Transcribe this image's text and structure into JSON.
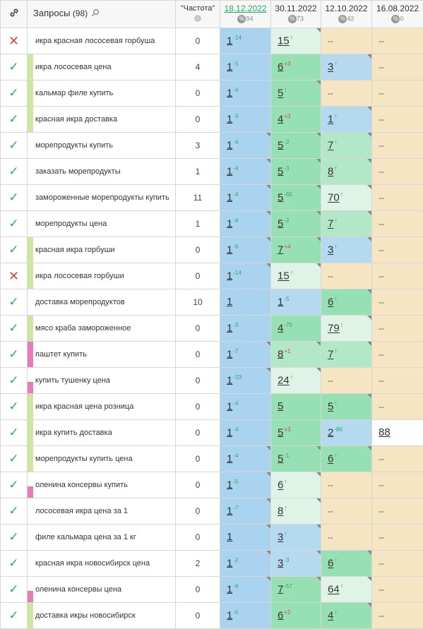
{
  "header": {
    "query_title": "Запросы",
    "query_count": "(98)",
    "frequency_title": "\"Частота\"",
    "dates": [
      {
        "label": "18.12.2022",
        "sub": "94",
        "link": true
      },
      {
        "label": "30.11.2022",
        "sub": "73",
        "link": false
      },
      {
        "label": "12.10.2022",
        "sub": "42",
        "link": false
      },
      {
        "label": "16.08.2022",
        "sub": "0",
        "link": false
      }
    ]
  },
  "colors": {
    "check": "#29a86a",
    "cross": "#e0443c",
    "delta_up": "#29a86a",
    "delta_down": "#e0443c"
  },
  "rows": [
    {
      "status": "cross",
      "tag": "",
      "query": "икра красная лососевая горбуша",
      "freq": "0",
      "c1": {
        "v": "1",
        "d": "-14",
        "dir": "up",
        "bg": "blue",
        "corner": false
      },
      "c2": {
        "v": "15",
        "d": "",
        "arr": true,
        "bg": "green3",
        "corner": true
      },
      "c3": {
        "v": "--",
        "bg": "beige"
      },
      "c4": {
        "v": "--",
        "bg": "beige"
      }
    },
    {
      "status": "check",
      "tag": "green",
      "query": "икра лососевая цена",
      "freq": "4",
      "c1": {
        "v": "1",
        "d": "-5",
        "dir": "up",
        "bg": "blue",
        "corner": false
      },
      "c2": {
        "v": "6",
        "d": "+3",
        "dir": "dn",
        "bg": "green1",
        "corner": false
      },
      "c3": {
        "v": "3",
        "d": "",
        "arr": true,
        "bg": "blue2",
        "corner": true
      },
      "c4": {
        "v": "--",
        "bg": "beige"
      }
    },
    {
      "status": "check",
      "tag": "green",
      "query": "кальмар филе купить",
      "freq": "0",
      "c1": {
        "v": "1",
        "d": "-4",
        "dir": "up",
        "bg": "blue",
        "corner": false
      },
      "c2": {
        "v": "5",
        "d": "",
        "arr": true,
        "bg": "green1",
        "corner": true
      },
      "c3": {
        "v": "--",
        "bg": "beige"
      },
      "c4": {
        "v": "--",
        "bg": "beige"
      }
    },
    {
      "status": "check",
      "tag": "green",
      "query": "красная икра доставка",
      "freq": "0",
      "c1": {
        "v": "1",
        "d": "-3",
        "dir": "up",
        "bg": "blue",
        "corner": false
      },
      "c2": {
        "v": "4",
        "d": "+3",
        "dir": "dn",
        "bg": "green1",
        "corner": false
      },
      "c3": {
        "v": "1",
        "d": "",
        "arr": true,
        "bg": "blue2",
        "corner": true
      },
      "c4": {
        "v": "--",
        "bg": "beige"
      }
    },
    {
      "status": "check",
      "tag": "",
      "query": "морепродукты купить",
      "freq": "3",
      "c1": {
        "v": "1",
        "d": "-4",
        "dir": "up",
        "bg": "blue",
        "corner": true
      },
      "c2": {
        "v": "5",
        "d": "-2",
        "dir": "up",
        "bg": "green1",
        "corner": true
      },
      "c3": {
        "v": "7",
        "d": "",
        "arr": true,
        "bg": "green2",
        "corner": true
      },
      "c4": {
        "v": "--",
        "bg": "beige"
      }
    },
    {
      "status": "check",
      "tag": "",
      "query": "заказать морепродукты",
      "freq": "1",
      "c1": {
        "v": "1",
        "d": "-4",
        "dir": "up",
        "bg": "blue",
        "corner": true
      },
      "c2": {
        "v": "5",
        "d": "-3",
        "dir": "up",
        "bg": "green1",
        "corner": true
      },
      "c3": {
        "v": "8",
        "d": "",
        "arr": true,
        "bg": "green2",
        "corner": true
      },
      "c4": {
        "v": "--",
        "bg": "beige"
      }
    },
    {
      "status": "check",
      "tag": "",
      "query": "замороженные морепродукты купить",
      "freq": "11",
      "c1": {
        "v": "1",
        "d": "-4",
        "dir": "up",
        "bg": "blue",
        "corner": true
      },
      "c2": {
        "v": "5",
        "d": "-65",
        "dir": "up",
        "bg": "green1",
        "corner": true
      },
      "c3": {
        "v": "70",
        "d": "",
        "arr": true,
        "bg": "green3",
        "corner": true
      },
      "c4": {
        "v": "--",
        "bg": "beige"
      }
    },
    {
      "status": "check",
      "tag": "",
      "query": "морепродукты цена",
      "freq": "1",
      "c1": {
        "v": "1",
        "d": "-4",
        "dir": "up",
        "bg": "blue",
        "corner": true
      },
      "c2": {
        "v": "5",
        "d": "-2",
        "dir": "up",
        "bg": "green1",
        "corner": true
      },
      "c3": {
        "v": "7",
        "d": "",
        "arr": true,
        "bg": "green2",
        "corner": true
      },
      "c4": {
        "v": "--",
        "bg": "beige"
      }
    },
    {
      "status": "check",
      "tag": "green",
      "query": "красная икра горбуши",
      "freq": "0",
      "c1": {
        "v": "1",
        "d": "-6",
        "dir": "up",
        "bg": "blue",
        "corner": true
      },
      "c2": {
        "v": "7",
        "d": "+4",
        "dir": "dn",
        "bg": "green1",
        "corner": true
      },
      "c3": {
        "v": "3",
        "d": "",
        "arr": true,
        "bg": "blue2",
        "corner": true
      },
      "c4": {
        "v": "--",
        "bg": "beige"
      }
    },
    {
      "status": "cross",
      "tag": "green",
      "query": "икра лососевая горбуши",
      "freq": "0",
      "c1": {
        "v": "1",
        "d": "-14",
        "dir": "up",
        "bg": "blue",
        "corner": true
      },
      "c2": {
        "v": "15",
        "d": "",
        "arr": true,
        "bg": "green3",
        "corner": true
      },
      "c3": {
        "v": "--",
        "bg": "beige"
      },
      "c4": {
        "v": "--",
        "bg": "beige"
      }
    },
    {
      "status": "check",
      "tag": "",
      "query": "доставка морепродуктов",
      "freq": "10",
      "c1": {
        "v": "1",
        "d": "",
        "dir": "",
        "bg": "blue",
        "corner": false
      },
      "c2": {
        "v": "1",
        "d": "-5",
        "dir": "up",
        "bg": "blue2",
        "corner": false
      },
      "c3": {
        "v": "6",
        "d": "",
        "arr": true,
        "bg": "green1",
        "corner": true
      },
      "c4": {
        "v": "--",
        "bg": "beige"
      }
    },
    {
      "status": "check",
      "tag": "green",
      "query": "мясо краба замороженное",
      "freq": "0",
      "c1": {
        "v": "1",
        "d": "-3",
        "dir": "up",
        "bg": "blue",
        "corner": false
      },
      "c2": {
        "v": "4",
        "d": "-75",
        "dir": "up",
        "bg": "green1",
        "corner": false
      },
      "c3": {
        "v": "79",
        "d": "",
        "arr": true,
        "bg": "green3",
        "corner": true
      },
      "c4": {
        "v": "--",
        "bg": "beige"
      }
    },
    {
      "status": "check",
      "tag": "pinkfull",
      "query": "паштет купить",
      "freq": "0",
      "c1": {
        "v": "1",
        "d": "-7",
        "dir": "up",
        "bg": "blue",
        "corner": true
      },
      "c2": {
        "v": "8",
        "d": "+1",
        "dir": "dn",
        "bg": "green2",
        "corner": true
      },
      "c3": {
        "v": "7",
        "d": "",
        "arr": true,
        "bg": "green2",
        "corner": true
      },
      "c4": {
        "v": "--",
        "bg": "beige"
      }
    },
    {
      "status": "check",
      "tag": "pink",
      "query": "купить тушенку цена",
      "freq": "0",
      "c1": {
        "v": "1",
        "d": "-23",
        "dir": "up",
        "bg": "blue",
        "corner": true
      },
      "c2": {
        "v": "24",
        "d": "",
        "arr": true,
        "bg": "green3",
        "corner": true
      },
      "c3": {
        "v": "--",
        "bg": "beige"
      },
      "c4": {
        "v": "--",
        "bg": "beige"
      }
    },
    {
      "status": "check",
      "tag": "green",
      "query": "икра красная цена розница",
      "freq": "0",
      "c1": {
        "v": "1",
        "d": "-4",
        "dir": "up",
        "bg": "blue",
        "corner": false
      },
      "c2": {
        "v": "5",
        "d": "",
        "dir": "",
        "bg": "green1",
        "corner": false
      },
      "c3": {
        "v": "5",
        "d": "",
        "arr": true,
        "bg": "green1",
        "corner": true
      },
      "c4": {
        "v": "--",
        "bg": "beige"
      }
    },
    {
      "status": "check",
      "tag": "green",
      "query": "икра купить доставка",
      "freq": "0",
      "c1": {
        "v": "1",
        "d": "-4",
        "dir": "up",
        "bg": "blue",
        "corner": false
      },
      "c2": {
        "v": "5",
        "d": "+3",
        "dir": "dn",
        "bg": "green1",
        "corner": false
      },
      "c3": {
        "v": "2",
        "d": "-86",
        "dir": "up",
        "bg": "blue2",
        "corner": false
      },
      "c4": {
        "v": "88",
        "bg": "white",
        "num": true
      }
    },
    {
      "status": "check",
      "tag": "green",
      "query": "морепродукты купить цена",
      "freq": "0",
      "c1": {
        "v": "1",
        "d": "-4",
        "dir": "up",
        "bg": "blue",
        "corner": true
      },
      "c2": {
        "v": "5",
        "d": "-1",
        "dir": "up",
        "bg": "green1",
        "corner": true
      },
      "c3": {
        "v": "6",
        "d": "",
        "arr": true,
        "bg": "green1",
        "corner": true
      },
      "c4": {
        "v": "--",
        "bg": "beige"
      }
    },
    {
      "status": "check",
      "tag": "pink",
      "query": "оленина консервы купить",
      "freq": "0",
      "c1": {
        "v": "1",
        "d": "-5",
        "dir": "up",
        "bg": "blue",
        "corner": true
      },
      "c2": {
        "v": "6",
        "d": "",
        "arr": true,
        "bg": "green3",
        "corner": true
      },
      "c3": {
        "v": "--",
        "bg": "beige"
      },
      "c4": {
        "v": "--",
        "bg": "beige"
      }
    },
    {
      "status": "check",
      "tag": "",
      "query": "лососевая икра цена за 1",
      "freq": "0",
      "c1": {
        "v": "1",
        "d": "-7",
        "dir": "up",
        "bg": "blue",
        "corner": true
      },
      "c2": {
        "v": "8",
        "d": "",
        "arr": true,
        "bg": "green3",
        "corner": true
      },
      "c3": {
        "v": "--",
        "bg": "beige"
      },
      "c4": {
        "v": "--",
        "bg": "beige"
      }
    },
    {
      "status": "check",
      "tag": "",
      "query": "филе кальмара цена за 1 кг",
      "freq": "0",
      "c1": {
        "v": "1",
        "d": "",
        "dir": "",
        "bg": "blue",
        "corner": true
      },
      "c2": {
        "v": "3",
        "d": "",
        "arr": true,
        "bg": "blue2",
        "corner": true
      },
      "c3": {
        "v": "--",
        "bg": "beige"
      },
      "c4": {
        "v": "--",
        "bg": "beige"
      }
    },
    {
      "status": "check",
      "tag": "",
      "query": "красная икра новосибирск цена",
      "freq": "2",
      "c1": {
        "v": "1",
        "d": "-2",
        "dir": "up",
        "bg": "blue",
        "corner": true
      },
      "c2": {
        "v": "3",
        "d": "-3",
        "dir": "up",
        "bg": "blue2",
        "corner": true
      },
      "c3": {
        "v": "6",
        "d": "",
        "arr": true,
        "bg": "green1",
        "corner": true
      },
      "c4": {
        "v": "--",
        "bg": "beige"
      }
    },
    {
      "status": "check",
      "tag": "pink",
      "query": "оленина консервы цена",
      "freq": "0",
      "c1": {
        "v": "1",
        "d": "-6",
        "dir": "up",
        "bg": "blue",
        "corner": true
      },
      "c2": {
        "v": "7",
        "d": "-57",
        "dir": "up",
        "bg": "green1",
        "corner": true
      },
      "c3": {
        "v": "64",
        "d": "",
        "arr": true,
        "bg": "green3",
        "corner": true
      },
      "c4": {
        "v": "--",
        "bg": "beige"
      }
    },
    {
      "status": "check",
      "tag": "green",
      "query": "доставка икры новосибирск",
      "freq": "0",
      "c1": {
        "v": "1",
        "d": "-5",
        "dir": "up",
        "bg": "blue",
        "corner": false
      },
      "c2": {
        "v": "6",
        "d": "+2",
        "dir": "dn",
        "bg": "green1",
        "corner": false
      },
      "c3": {
        "v": "4",
        "d": "",
        "arr": true,
        "bg": "green1",
        "corner": true
      },
      "c4": {
        "v": "--",
        "bg": "beige"
      }
    }
  ]
}
